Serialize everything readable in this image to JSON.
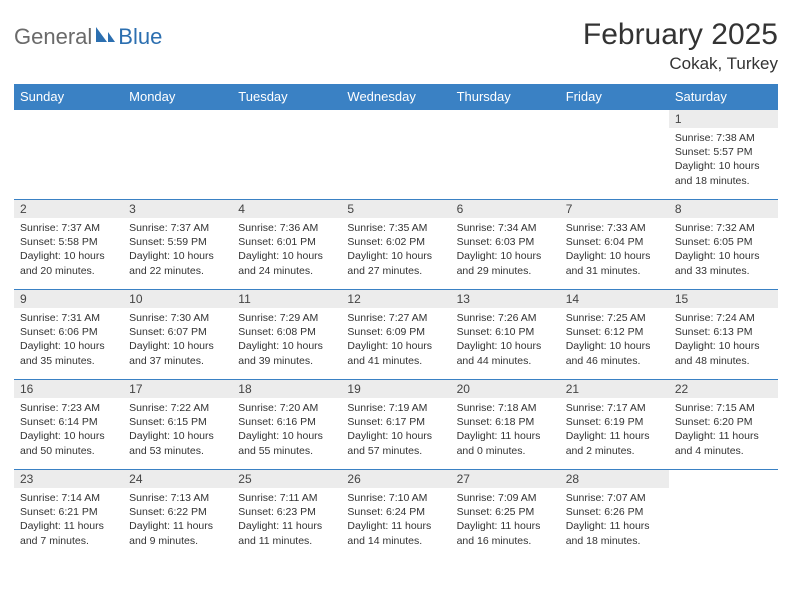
{
  "logo": {
    "general": "General",
    "blue": "Blue"
  },
  "title": "February 2025",
  "location": "Cokak, Turkey",
  "colors": {
    "header_bg": "#3a81c4",
    "header_text": "#ffffff",
    "daynum_bg": "#ececec",
    "border": "#3a81c4",
    "logo_gray": "#6a6a6a",
    "logo_blue": "#2c6fb0"
  },
  "weekdays": [
    "Sunday",
    "Monday",
    "Tuesday",
    "Wednesday",
    "Thursday",
    "Friday",
    "Saturday"
  ],
  "weeks": [
    [
      {
        "n": "",
        "sr": "",
        "ss": "",
        "dl": ""
      },
      {
        "n": "",
        "sr": "",
        "ss": "",
        "dl": ""
      },
      {
        "n": "",
        "sr": "",
        "ss": "",
        "dl": ""
      },
      {
        "n": "",
        "sr": "",
        "ss": "",
        "dl": ""
      },
      {
        "n": "",
        "sr": "",
        "ss": "",
        "dl": ""
      },
      {
        "n": "",
        "sr": "",
        "ss": "",
        "dl": ""
      },
      {
        "n": "1",
        "sr": "Sunrise: 7:38 AM",
        "ss": "Sunset: 5:57 PM",
        "dl": "Daylight: 10 hours and 18 minutes."
      }
    ],
    [
      {
        "n": "2",
        "sr": "Sunrise: 7:37 AM",
        "ss": "Sunset: 5:58 PM",
        "dl": "Daylight: 10 hours and 20 minutes."
      },
      {
        "n": "3",
        "sr": "Sunrise: 7:37 AM",
        "ss": "Sunset: 5:59 PM",
        "dl": "Daylight: 10 hours and 22 minutes."
      },
      {
        "n": "4",
        "sr": "Sunrise: 7:36 AM",
        "ss": "Sunset: 6:01 PM",
        "dl": "Daylight: 10 hours and 24 minutes."
      },
      {
        "n": "5",
        "sr": "Sunrise: 7:35 AM",
        "ss": "Sunset: 6:02 PM",
        "dl": "Daylight: 10 hours and 27 minutes."
      },
      {
        "n": "6",
        "sr": "Sunrise: 7:34 AM",
        "ss": "Sunset: 6:03 PM",
        "dl": "Daylight: 10 hours and 29 minutes."
      },
      {
        "n": "7",
        "sr": "Sunrise: 7:33 AM",
        "ss": "Sunset: 6:04 PM",
        "dl": "Daylight: 10 hours and 31 minutes."
      },
      {
        "n": "8",
        "sr": "Sunrise: 7:32 AM",
        "ss": "Sunset: 6:05 PM",
        "dl": "Daylight: 10 hours and 33 minutes."
      }
    ],
    [
      {
        "n": "9",
        "sr": "Sunrise: 7:31 AM",
        "ss": "Sunset: 6:06 PM",
        "dl": "Daylight: 10 hours and 35 minutes."
      },
      {
        "n": "10",
        "sr": "Sunrise: 7:30 AM",
        "ss": "Sunset: 6:07 PM",
        "dl": "Daylight: 10 hours and 37 minutes."
      },
      {
        "n": "11",
        "sr": "Sunrise: 7:29 AM",
        "ss": "Sunset: 6:08 PM",
        "dl": "Daylight: 10 hours and 39 minutes."
      },
      {
        "n": "12",
        "sr": "Sunrise: 7:27 AM",
        "ss": "Sunset: 6:09 PM",
        "dl": "Daylight: 10 hours and 41 minutes."
      },
      {
        "n": "13",
        "sr": "Sunrise: 7:26 AM",
        "ss": "Sunset: 6:10 PM",
        "dl": "Daylight: 10 hours and 44 minutes."
      },
      {
        "n": "14",
        "sr": "Sunrise: 7:25 AM",
        "ss": "Sunset: 6:12 PM",
        "dl": "Daylight: 10 hours and 46 minutes."
      },
      {
        "n": "15",
        "sr": "Sunrise: 7:24 AM",
        "ss": "Sunset: 6:13 PM",
        "dl": "Daylight: 10 hours and 48 minutes."
      }
    ],
    [
      {
        "n": "16",
        "sr": "Sunrise: 7:23 AM",
        "ss": "Sunset: 6:14 PM",
        "dl": "Daylight: 10 hours and 50 minutes."
      },
      {
        "n": "17",
        "sr": "Sunrise: 7:22 AM",
        "ss": "Sunset: 6:15 PM",
        "dl": "Daylight: 10 hours and 53 minutes."
      },
      {
        "n": "18",
        "sr": "Sunrise: 7:20 AM",
        "ss": "Sunset: 6:16 PM",
        "dl": "Daylight: 10 hours and 55 minutes."
      },
      {
        "n": "19",
        "sr": "Sunrise: 7:19 AM",
        "ss": "Sunset: 6:17 PM",
        "dl": "Daylight: 10 hours and 57 minutes."
      },
      {
        "n": "20",
        "sr": "Sunrise: 7:18 AM",
        "ss": "Sunset: 6:18 PM",
        "dl": "Daylight: 11 hours and 0 minutes."
      },
      {
        "n": "21",
        "sr": "Sunrise: 7:17 AM",
        "ss": "Sunset: 6:19 PM",
        "dl": "Daylight: 11 hours and 2 minutes."
      },
      {
        "n": "22",
        "sr": "Sunrise: 7:15 AM",
        "ss": "Sunset: 6:20 PM",
        "dl": "Daylight: 11 hours and 4 minutes."
      }
    ],
    [
      {
        "n": "23",
        "sr": "Sunrise: 7:14 AM",
        "ss": "Sunset: 6:21 PM",
        "dl": "Daylight: 11 hours and 7 minutes."
      },
      {
        "n": "24",
        "sr": "Sunrise: 7:13 AM",
        "ss": "Sunset: 6:22 PM",
        "dl": "Daylight: 11 hours and 9 minutes."
      },
      {
        "n": "25",
        "sr": "Sunrise: 7:11 AM",
        "ss": "Sunset: 6:23 PM",
        "dl": "Daylight: 11 hours and 11 minutes."
      },
      {
        "n": "26",
        "sr": "Sunrise: 7:10 AM",
        "ss": "Sunset: 6:24 PM",
        "dl": "Daylight: 11 hours and 14 minutes."
      },
      {
        "n": "27",
        "sr": "Sunrise: 7:09 AM",
        "ss": "Sunset: 6:25 PM",
        "dl": "Daylight: 11 hours and 16 minutes."
      },
      {
        "n": "28",
        "sr": "Sunrise: 7:07 AM",
        "ss": "Sunset: 6:26 PM",
        "dl": "Daylight: 11 hours and 18 minutes."
      },
      {
        "n": "",
        "sr": "",
        "ss": "",
        "dl": ""
      }
    ]
  ]
}
